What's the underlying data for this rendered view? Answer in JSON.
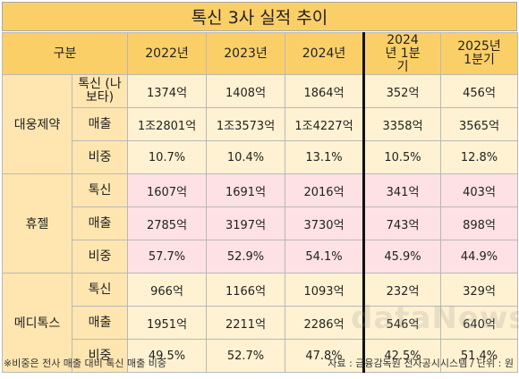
{
  "title": "톡신 3사 실적 추이",
  "header": {
    "category": "구분",
    "columns": [
      "2022년",
      "2023년",
      "2024년",
      "2024년 1분기",
      "2025년 1분기"
    ]
  },
  "companies": [
    {
      "name": "대웅제약",
      "rows": [
        {
          "label": "톡신 (나보타)",
          "values": [
            "1374억",
            "1408억",
            "1864억",
            "352억",
            "456억"
          ]
        },
        {
          "label": "매출",
          "values": [
            "1조2801억",
            "1조3573억",
            "1조4227억",
            "3358억",
            "3565억"
          ]
        },
        {
          "label": "비중",
          "values": [
            "10.7%",
            "10.4%",
            "13.1%",
            "10.5%",
            "12.8%"
          ]
        }
      ]
    },
    {
      "name": "휴젤",
      "rows": [
        {
          "label": "톡신",
          "values": [
            "1607억",
            "1691억",
            "2016억",
            "341억",
            "403억"
          ]
        },
        {
          "label": "매출",
          "values": [
            "2785억",
            "3197억",
            "3730억",
            "743억",
            "898억"
          ]
        },
        {
          "label": "비중",
          "values": [
            "57.7%",
            "52.9%",
            "54.1%",
            "45.9%",
            "44.9%"
          ]
        }
      ]
    },
    {
      "name": "메디톡스",
      "rows": [
        {
          "label": "톡신",
          "values": [
            "966억",
            "1166억",
            "1093억",
            "232억",
            "329억"
          ]
        },
        {
          "label": "매출",
          "values": [
            "1951억",
            "2211억",
            "2286억",
            "546억",
            "640억"
          ]
        },
        {
          "label": "비중",
          "values": [
            "49.5%",
            "52.7%",
            "47.8%",
            "42.5%",
            "51.4%"
          ]
        }
      ]
    }
  ],
  "footer": {
    "note": "※비중은 전사 매출 대비 톡신 매출 비중",
    "source": "자료 : 금융감독원 전자공시시스템 / 단위 : 원"
  },
  "watermark": "dataNews",
  "colors": {
    "header": "#fbcf67",
    "label_cell": "#ffe6b0",
    "yellow_row": "#fff2d2",
    "pink_row": "#fde1e4"
  }
}
